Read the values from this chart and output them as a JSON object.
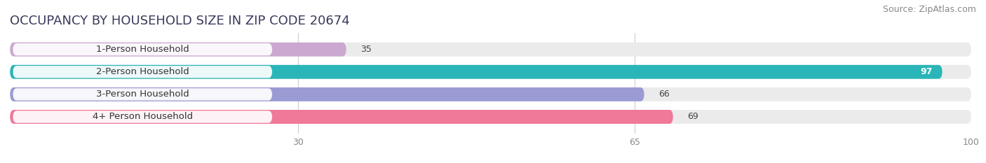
{
  "title": "OCCUPANCY BY HOUSEHOLD SIZE IN ZIP CODE 20674",
  "source": "Source: ZipAtlas.com",
  "categories": [
    "1-Person Household",
    "2-Person Household",
    "3-Person Household",
    "4+ Person Household"
  ],
  "values": [
    35,
    97,
    66,
    69
  ],
  "bar_colors": [
    "#cba8d0",
    "#2ab5b8",
    "#9b9bd4",
    "#f07898"
  ],
  "xlim": [
    0,
    100
  ],
  "xticks": [
    30,
    65,
    100
  ],
  "bar_height": 0.62,
  "background_color": "#ffffff",
  "bar_bg_color": "#ebebeb",
  "title_fontsize": 13,
  "source_fontsize": 9,
  "label_fontsize": 9.5,
  "value_fontsize": 9
}
